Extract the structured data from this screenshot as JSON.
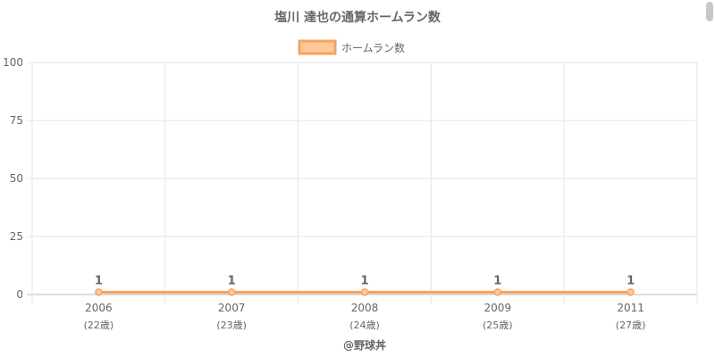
{
  "chart_data": {
    "type": "line",
    "title": "塩川 達也の通算ホームラン数",
    "categories": [
      "2006",
      "2007",
      "2008",
      "2009",
      "2011"
    ],
    "sub_labels": [
      "(22歳)",
      "(23歳)",
      "(24歳)",
      "(25歳)",
      "(27歳)"
    ],
    "series": [
      {
        "name": "ホームラン数",
        "values": [
          1,
          1,
          1,
          1,
          1
        ]
      }
    ],
    "data_labels": [
      "1",
      "1",
      "1",
      "1",
      "1"
    ],
    "ylim": [
      0,
      100
    ],
    "yticks": [
      "0",
      "25",
      "50",
      "75",
      "100"
    ],
    "grid": true,
    "legend": "top",
    "colors": {
      "line": "#f7a35c",
      "fill": "#fbc99c",
      "grid": "#e6e6e6",
      "axis": "#bbbbbb",
      "text": "#666666"
    }
  },
  "credit": "@野球丼"
}
